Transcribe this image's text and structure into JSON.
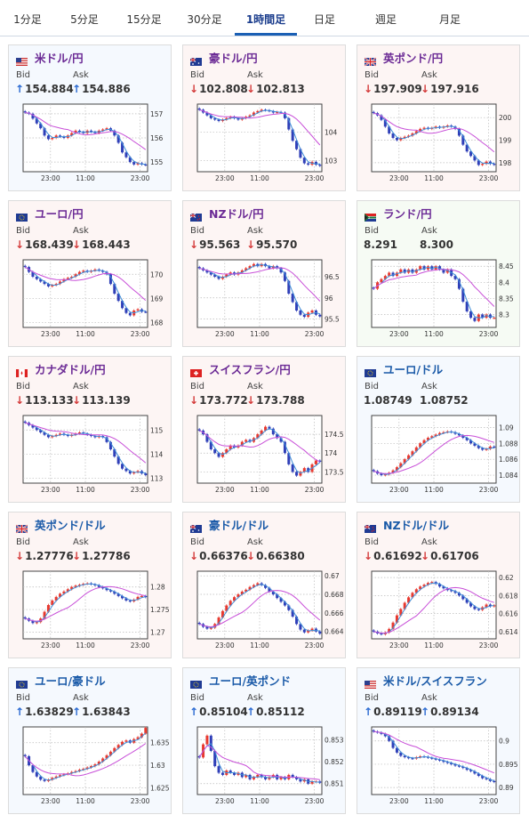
{
  "tabs": [
    {
      "label": "1分足"
    },
    {
      "label": "5分足"
    },
    {
      "label": "15分足"
    },
    {
      "label": "30分足"
    },
    {
      "label": "1時間足",
      "active": true
    },
    {
      "label": "日足"
    },
    {
      "label": "週足"
    },
    {
      "label": "月足"
    }
  ],
  "bid_label": "Bid",
  "ask_label": "Ask",
  "colors": {
    "up_arrow": "#2a6ad2",
    "down_arrow": "#d43b3b",
    "title_jpy": "#6b2a95",
    "title_cross": "#1a5aa8",
    "bg_blue": "#f5f9fe",
    "bg_pink": "#fdf5f4",
    "bg_green": "#f6fbf4",
    "up_candle": "#e8392f",
    "down_candle": "#2f3fb8",
    "ma_short": "#3f8ed8",
    "ma_long": "#c84fd8"
  },
  "pairs": [
    {
      "name": "米ドル/円",
      "flag": "us",
      "bid": "154.884",
      "ask": "154.886",
      "dir": "up",
      "ticks": [
        "157",
        "156",
        "155"
      ],
      "tick_values": [
        157,
        156,
        155
      ],
      "range": [
        154.6,
        157.4
      ],
      "close": [
        157.05,
        157.0,
        156.8,
        156.6,
        156.4,
        156.1,
        155.95,
        156.0,
        156.1,
        156.05,
        156.0,
        156.1,
        156.2,
        156.3,
        156.25,
        156.2,
        156.3,
        156.25,
        156.2,
        156.3,
        156.35,
        156.4,
        156.3,
        156.1,
        155.8,
        155.4,
        155.2,
        155.0,
        154.9,
        154.95,
        154.9,
        154.88
      ]
    },
    {
      "name": "豪ドル/円",
      "flag": "au",
      "bid": "102.808",
      "ask": "102.813",
      "dir": "down",
      "ticks": [
        "104",
        "103"
      ],
      "tick_values": [
        104,
        103
      ],
      "range": [
        102.6,
        105.0
      ],
      "close": [
        104.8,
        104.7,
        104.6,
        104.5,
        104.45,
        104.4,
        104.45,
        104.5,
        104.55,
        104.5,
        104.45,
        104.5,
        104.55,
        104.6,
        104.7,
        104.75,
        104.8,
        104.78,
        104.75,
        104.7,
        104.72,
        104.7,
        104.5,
        104.1,
        103.7,
        103.4,
        103.1,
        102.9,
        102.85,
        102.95,
        102.85,
        102.81
      ]
    },
    {
      "name": "英ポンド/円",
      "flag": "uk",
      "bid": "197.909",
      "ask": "197.916",
      "dir": "down",
      "ticks": [
        "200",
        "199",
        "198"
      ],
      "tick_values": [
        200,
        199,
        198
      ],
      "range": [
        197.6,
        200.6
      ],
      "close": [
        200.2,
        200.1,
        199.9,
        199.6,
        199.3,
        199.1,
        199.0,
        199.1,
        199.15,
        199.2,
        199.3,
        199.4,
        199.5,
        199.55,
        199.5,
        199.55,
        199.6,
        199.55,
        199.6,
        199.65,
        199.6,
        199.5,
        199.2,
        198.8,
        198.5,
        198.3,
        198.1,
        197.9,
        197.95,
        198.05,
        197.95,
        197.91
      ]
    },
    {
      "name": "ユーロ/円",
      "flag": "eu",
      "bid": "168.439",
      "ask": "168.443",
      "dir": "down",
      "ticks": [
        "170",
        "169",
        "168"
      ],
      "tick_values": [
        170,
        169,
        168
      ],
      "range": [
        167.8,
        170.6
      ],
      "close": [
        170.3,
        170.1,
        169.9,
        169.8,
        169.7,
        169.6,
        169.5,
        169.55,
        169.6,
        169.7,
        169.8,
        169.85,
        169.9,
        170.0,
        170.1,
        170.15,
        170.1,
        170.15,
        170.2,
        170.15,
        170.1,
        170.0,
        169.6,
        169.2,
        168.9,
        168.6,
        168.4,
        168.3,
        168.5,
        168.55,
        168.45,
        168.44
      ]
    },
    {
      "name": "NZドル/円",
      "flag": "nz",
      "bid": "95.563",
      "ask": "95.570",
      "dir": "down",
      "ticks": [
        "96.5",
        "96",
        "95.5"
      ],
      "tick_values": [
        96.5,
        96,
        95.5
      ],
      "range": [
        95.3,
        96.9
      ],
      "close": [
        96.7,
        96.65,
        96.6,
        96.55,
        96.5,
        96.45,
        96.5,
        96.55,
        96.6,
        96.55,
        96.6,
        96.65,
        96.7,
        96.75,
        96.8,
        96.75,
        96.8,
        96.75,
        96.7,
        96.75,
        96.7,
        96.6,
        96.4,
        96.1,
        95.9,
        95.7,
        95.6,
        95.55,
        95.65,
        95.7,
        95.6,
        95.56
      ]
    },
    {
      "name": "ランド/円",
      "flag": "za",
      "bid": "8.291",
      "ask": "8.300",
      "dir": "none",
      "ticks": [
        "8.45",
        "8.4",
        "8.35",
        "8.3"
      ],
      "tick_values": [
        8.45,
        8.4,
        8.35,
        8.3
      ],
      "range": [
        8.26,
        8.47
      ],
      "close": [
        8.38,
        8.4,
        8.41,
        8.42,
        8.43,
        8.42,
        8.43,
        8.44,
        8.43,
        8.44,
        8.43,
        8.44,
        8.45,
        8.44,
        8.45,
        8.44,
        8.45,
        8.44,
        8.43,
        8.44,
        8.42,
        8.41,
        8.38,
        8.34,
        8.31,
        8.29,
        8.28,
        8.3,
        8.29,
        8.3,
        8.29,
        8.29
      ]
    },
    {
      "name": "カナダドル/円",
      "flag": "ca",
      "bid": "113.133",
      "ask": "113.139",
      "dir": "down",
      "ticks": [
        "115",
        "114",
        "113"
      ],
      "tick_values": [
        115,
        114,
        113
      ],
      "range": [
        112.8,
        115.6
      ],
      "close": [
        115.3,
        115.2,
        115.1,
        115.0,
        114.9,
        114.8,
        114.7,
        114.75,
        114.8,
        114.85,
        114.8,
        114.75,
        114.8,
        114.85,
        114.9,
        114.85,
        114.8,
        114.75,
        114.7,
        114.75,
        114.7,
        114.5,
        114.2,
        113.9,
        113.6,
        113.4,
        113.3,
        113.2,
        113.25,
        113.3,
        113.2,
        113.13
      ]
    },
    {
      "name": "スイスフラン/円",
      "flag": "ch",
      "bid": "173.772",
      "ask": "173.788",
      "dir": "down",
      "ticks": [
        "174.5",
        "174",
        "173.5"
      ],
      "tick_values": [
        174.5,
        174,
        173.5
      ],
      "range": [
        173.2,
        175.0
      ],
      "close": [
        174.6,
        174.5,
        174.3,
        174.1,
        174.0,
        173.9,
        174.0,
        174.1,
        174.2,
        174.15,
        174.2,
        174.3,
        174.35,
        174.3,
        174.4,
        174.5,
        174.6,
        174.7,
        174.65,
        174.5,
        174.4,
        174.3,
        174.0,
        173.7,
        173.5,
        173.4,
        173.5,
        173.6,
        173.5,
        173.7,
        173.8,
        173.77
      ]
    },
    {
      "name": "ユーロ/ドル",
      "flag": "eu",
      "bid": "1.08749",
      "ask": "1.08752",
      "dir": "none",
      "ticks": [
        "1.09",
        "1.088",
        "1.086",
        "1.084"
      ],
      "tick_values": [
        1.09,
        1.088,
        1.086,
        1.084
      ],
      "range": [
        1.083,
        1.0915
      ],
      "close": [
        1.0845,
        1.0842,
        1.084,
        1.0841,
        1.0843,
        1.0846,
        1.085,
        1.0855,
        1.086,
        1.0865,
        1.087,
        1.0875,
        1.088,
        1.0884,
        1.0887,
        1.0889,
        1.0891,
        1.0893,
        1.0894,
        1.0895,
        1.0894,
        1.0892,
        1.089,
        1.0887,
        1.0884,
        1.088,
        1.0877,
        1.0874,
        1.0872,
        1.0873,
        1.0876,
        1.08749
      ]
    },
    {
      "name": "英ポンド/ドル",
      "flag": "uk",
      "bid": "1.27776",
      "ask": "1.27786",
      "dir": "down",
      "ticks": [
        "1.28",
        "1.275",
        "1.27"
      ],
      "tick_values": [
        1.28,
        1.275,
        1.27
      ],
      "range": [
        1.2685,
        1.2835
      ],
      "close": [
        1.273,
        1.2725,
        1.272,
        1.2722,
        1.273,
        1.2745,
        1.276,
        1.277,
        1.2778,
        1.2785,
        1.279,
        1.2795,
        1.28,
        1.2803,
        1.2805,
        1.2807,
        1.2808,
        1.2806,
        1.2804,
        1.28,
        1.2797,
        1.2793,
        1.279,
        1.2785,
        1.278,
        1.2775,
        1.277,
        1.2768,
        1.2772,
        1.2778,
        1.278,
        1.27776
      ]
    },
    {
      "name": "豪ドル/ドル",
      "flag": "au",
      "bid": "0.66376",
      "ask": "0.66380",
      "dir": "down",
      "ticks": [
        "0.67",
        "0.668",
        "0.666",
        "0.664"
      ],
      "tick_values": [
        0.67,
        0.668,
        0.666,
        0.664
      ],
      "range": [
        0.6632,
        0.6705
      ],
      "close": [
        0.6648,
        0.6645,
        0.6643,
        0.6644,
        0.6648,
        0.6655,
        0.6662,
        0.6668,
        0.6673,
        0.6677,
        0.668,
        0.6683,
        0.6685,
        0.6688,
        0.669,
        0.6692,
        0.669,
        0.6687,
        0.6683,
        0.668,
        0.6676,
        0.6672,
        0.6668,
        0.6663,
        0.6656,
        0.6648,
        0.6642,
        0.6639,
        0.6641,
        0.6643,
        0.664,
        0.66376
      ]
    },
    {
      "name": "NZドル/ドル",
      "flag": "nz",
      "bid": "0.61692",
      "ask": "0.61706",
      "dir": "down",
      "ticks": [
        "0.62",
        "0.618",
        "0.616",
        "0.614"
      ],
      "tick_values": [
        0.62,
        0.618,
        0.616,
        0.614
      ],
      "range": [
        0.6132,
        0.6207
      ],
      "close": [
        0.614,
        0.6138,
        0.6137,
        0.6139,
        0.6143,
        0.615,
        0.6158,
        0.6165,
        0.6172,
        0.6178,
        0.6183,
        0.6187,
        0.619,
        0.6192,
        0.6194,
        0.6195,
        0.6193,
        0.619,
        0.6188,
        0.6186,
        0.6185,
        0.6183,
        0.618,
        0.6176,
        0.6172,
        0.6168,
        0.6165,
        0.6164,
        0.6167,
        0.617,
        0.6168,
        0.61692
      ]
    },
    {
      "name": "ユーロ/豪ドル",
      "flag": "eu",
      "bid": "1.63829",
      "ask": "1.63843",
      "dir": "up",
      "ticks": [
        "1.635",
        "1.63",
        "1.625"
      ],
      "tick_values": [
        1.635,
        1.63,
        1.625
      ],
      "range": [
        1.6235,
        1.6385
      ],
      "close": [
        1.632,
        1.63,
        1.6285,
        1.6275,
        1.6268,
        1.6265,
        1.6268,
        1.6272,
        1.6275,
        1.6278,
        1.628,
        1.6282,
        1.6285,
        1.6287,
        1.629,
        1.6292,
        1.6295,
        1.6298,
        1.6302,
        1.6308,
        1.6315,
        1.6322,
        1.633,
        1.6338,
        1.6345,
        1.6352,
        1.6355,
        1.635,
        1.6358,
        1.6362,
        1.637,
        1.63829
      ]
    },
    {
      "name": "ユーロ/英ポンド",
      "flag": "eu",
      "bid": "0.85104",
      "ask": "0.85112",
      "dir": "up",
      "ticks": [
        "0.853",
        "0.852",
        "0.851"
      ],
      "tick_values": [
        0.853,
        0.852,
        0.851
      ],
      "range": [
        0.8505,
        0.8536
      ],
      "close": [
        0.8522,
        0.8528,
        0.8532,
        0.8525,
        0.8518,
        0.8515,
        0.8514,
        0.8516,
        0.8515,
        0.8514,
        0.8515,
        0.8513,
        0.8514,
        0.8512,
        0.8513,
        0.8514,
        0.8513,
        0.8512,
        0.8513,
        0.8514,
        0.8512,
        0.8513,
        0.8512,
        0.8514,
        0.8513,
        0.8512,
        0.8511,
        0.8512,
        0.851,
        0.8511,
        0.8511,
        0.85104
      ]
    },
    {
      "name": "米ドル/スイスフラン",
      "flag": "us",
      "bid": "0.89119",
      "ask": "0.89134",
      "dir": "up",
      "ticks": [
        "0.9",
        "0.895",
        "0.89"
      ],
      "tick_values": [
        0.9,
        0.895,
        0.89
      ],
      "range": [
        0.8885,
        0.903
      ],
      "close": [
        0.902,
        0.9018,
        0.9015,
        0.901,
        0.9,
        0.8985,
        0.8975,
        0.8968,
        0.8965,
        0.8963,
        0.8962,
        0.8965,
        0.8967,
        0.8966,
        0.8964,
        0.8962,
        0.896,
        0.8958,
        0.8955,
        0.8953,
        0.895,
        0.8947,
        0.8945,
        0.8942,
        0.8938,
        0.8935,
        0.893,
        0.8925,
        0.892,
        0.8918,
        0.8914,
        0.89119
      ]
    }
  ],
  "x_ticks": [
    "23:00",
    "11:00",
    "23:00"
  ]
}
